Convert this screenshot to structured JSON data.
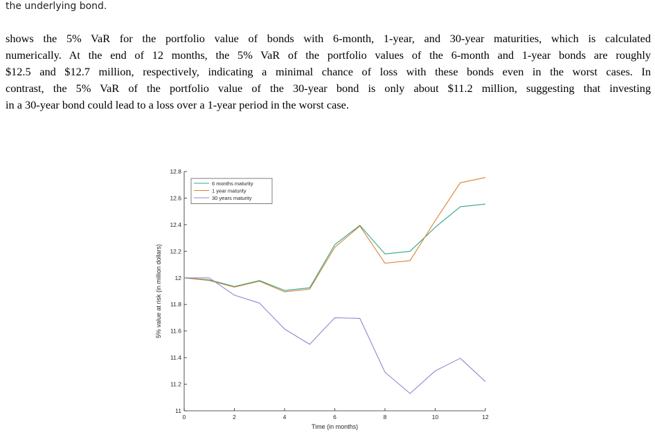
{
  "top_text": "the underlying bond.",
  "paragraph_lines": [
    "shows the 5% VaR for the portfolio value of bonds with 6-month, 1-year, and 30-year maturities, which is calculated",
    "numerically. At the end of 12 months, the 5% VaR of the portfolio values of the 6-month and 1-year bonds are roughly",
    "$12.5 and $12.7 million, respectively, indicating a minimal chance of loss with these bonds even in the worst cases. In",
    "contrast, the 5% VaR of the portfolio value of the 30-year bond is only about $11.2 million, suggesting that investing",
    "in a 30-year bond could lead to a loss over a 1-year period in the worst case."
  ],
  "chart_data": {
    "type": "line",
    "xlabel": "Time (in months)",
    "ylabel": "5% value at risk (in million dollars)",
    "xlim": [
      0,
      12
    ],
    "ylim": [
      11,
      12.8
    ],
    "xticks": [
      0,
      2,
      4,
      6,
      8,
      10,
      12
    ],
    "yticks": [
      11,
      11.2,
      11.4,
      11.6,
      11.8,
      12,
      12.2,
      12.4,
      12.6,
      12.8
    ],
    "x": [
      0,
      1,
      2,
      3,
      4,
      5,
      6,
      7,
      8,
      9,
      10,
      11,
      12
    ],
    "grid": false,
    "legend_position": "top-left",
    "series": [
      {
        "name": "6 months maturity",
        "color": "#2ca58d",
        "values": [
          12.0,
          11.985,
          11.935,
          11.98,
          11.905,
          11.925,
          12.25,
          12.395,
          12.18,
          12.2,
          12.38,
          12.535,
          12.555
        ]
      },
      {
        "name": "1 year maturity",
        "color": "#d9812b",
        "values": [
          12.0,
          11.98,
          11.93,
          11.975,
          11.895,
          11.915,
          12.23,
          12.39,
          12.11,
          12.13,
          12.43,
          12.715,
          12.755
        ]
      },
      {
        "name": "30 years maturity",
        "color": "#8a87d0",
        "values": [
          12.0,
          12.0,
          11.87,
          11.81,
          11.615,
          11.5,
          11.7,
          11.695,
          11.29,
          11.13,
          11.3,
          11.395,
          11.22
        ]
      }
    ]
  }
}
